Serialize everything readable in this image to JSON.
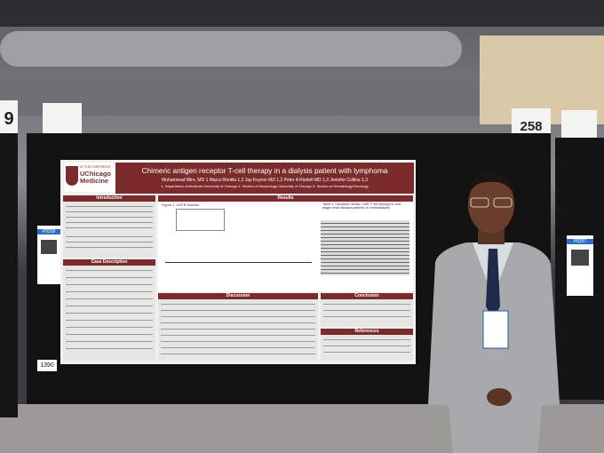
{
  "signs": {
    "left": "9",
    "right": "258"
  },
  "badges": {
    "left": "P0258",
    "right": "P0257"
  },
  "board_tag": "1390",
  "poster": {
    "logo_tagline": "AT THE FOREFRONT",
    "logo_name": "UChicago Medicine",
    "title": "Chimeric antigen receptor T-cell therapy in a dialysis patient with lymphoma",
    "authors": "Muhammad Mire, MD 1  Marco Bonilla 1,2  Jay Koyner MD 1,2  Peter A Riedell MD 1,3  Jennifer Collins 1,3",
    "affiliations": "1. Department of Medicine University of Chicago 2. Section of Nephrology University of Chicago 3. Section of Hematology/Oncology",
    "sections": {
      "introduction": "Introduction",
      "case": "Case Description",
      "results": "Results",
      "discussion": "Discussion",
      "conclusion": "Conclusion",
      "references": "References"
    },
    "figure_caption": "Figure 1. eGFR timeline",
    "table_caption": "Table 1. Literature review: CAR-T cell therapy in end-stage renal disease patients on hemodialysis"
  }
}
